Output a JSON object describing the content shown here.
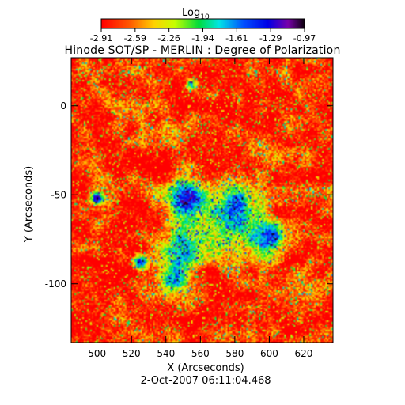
{
  "chart_data": {
    "type": "heatmap",
    "title": "Hinode SOT/SP - MERLIN : Degree of Polarization",
    "xlabel": "X (Arcseconds)",
    "ylabel": "Y (Arcseconds)",
    "timestamp": "2-Oct-2007 06:11:04.468",
    "x_range": [
      485,
      637
    ],
    "y_range": [
      -133,
      27
    ],
    "x_ticks": [
      500,
      520,
      540,
      560,
      580,
      600,
      620
    ],
    "y_ticks": [
      0,
      -50,
      -100
    ],
    "colorbar": {
      "label_main": "Log",
      "label_sub": "10",
      "tick_labels": [
        "-2.91",
        "-2.59",
        "-2.26",
        "-1.94",
        "-1.61",
        "-1.29",
        "-0.97"
      ],
      "min": -2.91,
      "max": -0.97,
      "colormap": "rainbow (red - yellow - green - cyan - blue - violet - black)"
    },
    "background_value": -2.8,
    "regions": [
      {
        "x": 553,
        "y": -52,
        "radius_arcsec": 11,
        "value": -1.25
      },
      {
        "x": 580,
        "y": -58,
        "radius_arcsec": 12,
        "value": -1.2
      },
      {
        "x": 552,
        "y": -80,
        "radius_arcsec": 10,
        "value": -1.25
      },
      {
        "x": 598,
        "y": -75,
        "radius_arcsec": 10,
        "value": -1.3
      },
      {
        "x": 566,
        "y": -65,
        "radius_arcsec": 16,
        "value": -2.0
      },
      {
        "x": 545,
        "y": -95,
        "radius_arcsec": 10,
        "value": -1.7
      },
      {
        "x": 500,
        "y": -52,
        "radius_arcsec": 3,
        "value": -1.3
      },
      {
        "x": 525,
        "y": -88,
        "radius_arcsec": 4,
        "value": -1.5
      },
      {
        "x": 555,
        "y": 12,
        "radius_arcsec": 3,
        "value": -1.6
      }
    ]
  }
}
